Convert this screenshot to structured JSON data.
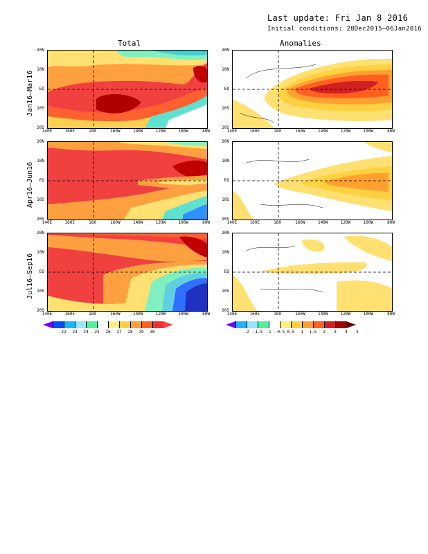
{
  "header": {
    "last_update": "Last update: Fri Jan 8 2016",
    "initial_conditions": "Initial conditions: 28Dec2015–06Jan2016"
  },
  "columns": {
    "total": "Total",
    "anomalies": "Anomalies"
  },
  "rows": [
    {
      "label": "Jan16–Mar16"
    },
    {
      "label": "Apr16–Jun16"
    },
    {
      "label": "Jul16–Sep16"
    }
  ],
  "y_ticks": [
    "20N",
    "10N",
    "EQ",
    "10S",
    "20S"
  ],
  "x_ticks": [
    "140E",
    "160E",
    "180",
    "160W",
    "140W",
    "120W",
    "100W",
    "80W"
  ],
  "total_colorbar": {
    "labels": [
      "22",
      "23",
      "24",
      "25",
      "26",
      "27",
      "28",
      "29",
      "30"
    ],
    "colors": [
      "#6f00ff",
      "#0050ff",
      "#20b4ff",
      "#96e6ff",
      "#50f0a0",
      "#ffffff",
      "#fff080",
      "#ffd040",
      "#ffa030",
      "#ff6020",
      "#f03030",
      "#ff4040"
    ]
  },
  "anomaly_colorbar": {
    "labels": [
      "-2",
      "-1.5",
      "-1",
      "-0.5",
      "0.5",
      "1",
      "1.5",
      "2",
      "3",
      "4",
      "5"
    ],
    "colors": [
      "#6f00ff",
      "#20b4ff",
      "#96e6ff",
      "#50f0a0",
      "#ffffff",
      "#fff080",
      "#ffd040",
      "#ffa030",
      "#ff6020",
      "#d02020",
      "#a00000",
      "#600000"
    ]
  },
  "colors": {
    "warm_red": "#f04040",
    "dark_red": "#b00000",
    "orange": "#ffa040",
    "yellow": "#ffe070",
    "cyan": "#60e0d0",
    "blue": "#2040ff"
  }
}
